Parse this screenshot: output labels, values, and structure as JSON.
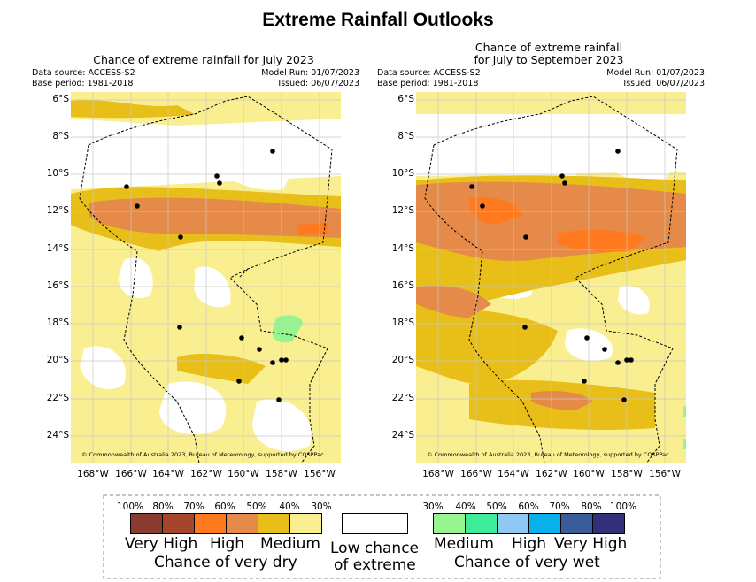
{
  "title": "Extreme Rainfall Outlooks",
  "panels": [
    {
      "title_line1": "Chance of extreme rainfall for July 2023",
      "title_line2": "",
      "data_source": "Data source: ACCESS-S2",
      "base_period": "Base period: 1981-2018",
      "model_run": "Model Run: 01/07/2023",
      "issued": "Issued: 06/07/2023",
      "copyright": "© Commonwealth of Australia 2023, Bureau of Meteorology, supported by COSPPac"
    },
    {
      "title_line1": "Chance of extreme rainfall",
      "title_line2": "for July to September 2023",
      "data_source": "Data source: ACCESS-S2",
      "base_period": "Base period: 1981-2018",
      "model_run": "Model Run: 01/07/2023",
      "issued": "Issued: 06/07/2023",
      "copyright": "© Commonwealth of Australia 2023, Bureau of Meteorology, supported by COSPPac"
    }
  ],
  "lat_labels": [
    "6°S",
    "8°S",
    "10°S",
    "12°S",
    "14°S",
    "16°S",
    "18°S",
    "20°S",
    "22°S",
    "24°S"
  ],
  "lon_labels": [
    "168°W",
    "166°W",
    "164°W",
    "162°W",
    "160°W",
    "158°W",
    "156°W"
  ],
  "legend": {
    "dry_ticks": [
      "100%",
      "80%",
      "70%",
      "60%",
      "50%",
      "40%",
      "30%"
    ],
    "dry_colors": [
      "#8b3a2f",
      "#a4452c",
      "#ff7a1f",
      "#e58a48",
      "#e8bf18",
      "#f9ef90"
    ],
    "wet_ticks": [
      "30%",
      "40%",
      "50%",
      "60%",
      "70%",
      "80%",
      "100%"
    ],
    "wet_colors": [
      "#96f58f",
      "#3ded9a",
      "#8fc8f2",
      "#08b0ec",
      "#3a5d9a",
      "#33307a"
    ],
    "very_high_dry": "Very High",
    "high_dry": "High",
    "medium_dry": "Medium",
    "chance_very_dry": "Chance of very dry",
    "low_chance_line1": "Low chance",
    "low_chance_line2": "of extreme",
    "medium_wet": "Medium",
    "high_wet": "High",
    "very_high_wet": "Very High",
    "chance_very_wet": "Chance of very wet"
  }
}
